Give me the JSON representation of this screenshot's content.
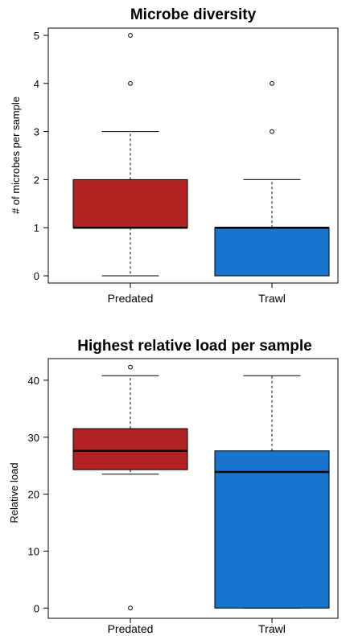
{
  "chart_data": [
    {
      "type": "boxplot",
      "title": "Microbe diversity",
      "xlabel": "",
      "ylabel": "# of microbes per sample",
      "categories": [
        "Predated",
        "Trawl"
      ],
      "ylim": [
        -0.15,
        5.15
      ],
      "yticks": [
        0,
        1,
        2,
        3,
        4,
        5
      ],
      "grid": false,
      "legend": "none",
      "boxes": [
        {
          "name": "Predated",
          "color": "#B22222",
          "min": 0,
          "q1": 1,
          "median": 1,
          "q3": 2,
          "max": 3,
          "outliers": [
            4,
            5
          ]
        },
        {
          "name": "Trawl",
          "color": "#1874CD",
          "min": 0,
          "q1": 0,
          "median": 1,
          "q3": 1,
          "max": 2,
          "outliers": [
            3,
            4
          ]
        }
      ]
    },
    {
      "type": "boxplot",
      "title": "Highest relative load per sample",
      "xlabel": "",
      "ylabel": "Relative load",
      "categories": [
        "Predated",
        "Trawl"
      ],
      "ylim": [
        -1.8,
        43.8
      ],
      "yticks": [
        0,
        10,
        20,
        30,
        40
      ],
      "grid": false,
      "legend": "none",
      "boxes": [
        {
          "name": "Predated",
          "color": "#B22222",
          "min": 23.5,
          "q1": 24.3,
          "median": 27.6,
          "q3": 31.5,
          "max": 40.8,
          "outliers": [
            0,
            42.3
          ]
        },
        {
          "name": "Trawl",
          "color": "#1874CD",
          "min": 0,
          "q1": 0,
          "median": 23.9,
          "q3": 27.6,
          "max": 40.8,
          "outliers": []
        }
      ]
    }
  ]
}
